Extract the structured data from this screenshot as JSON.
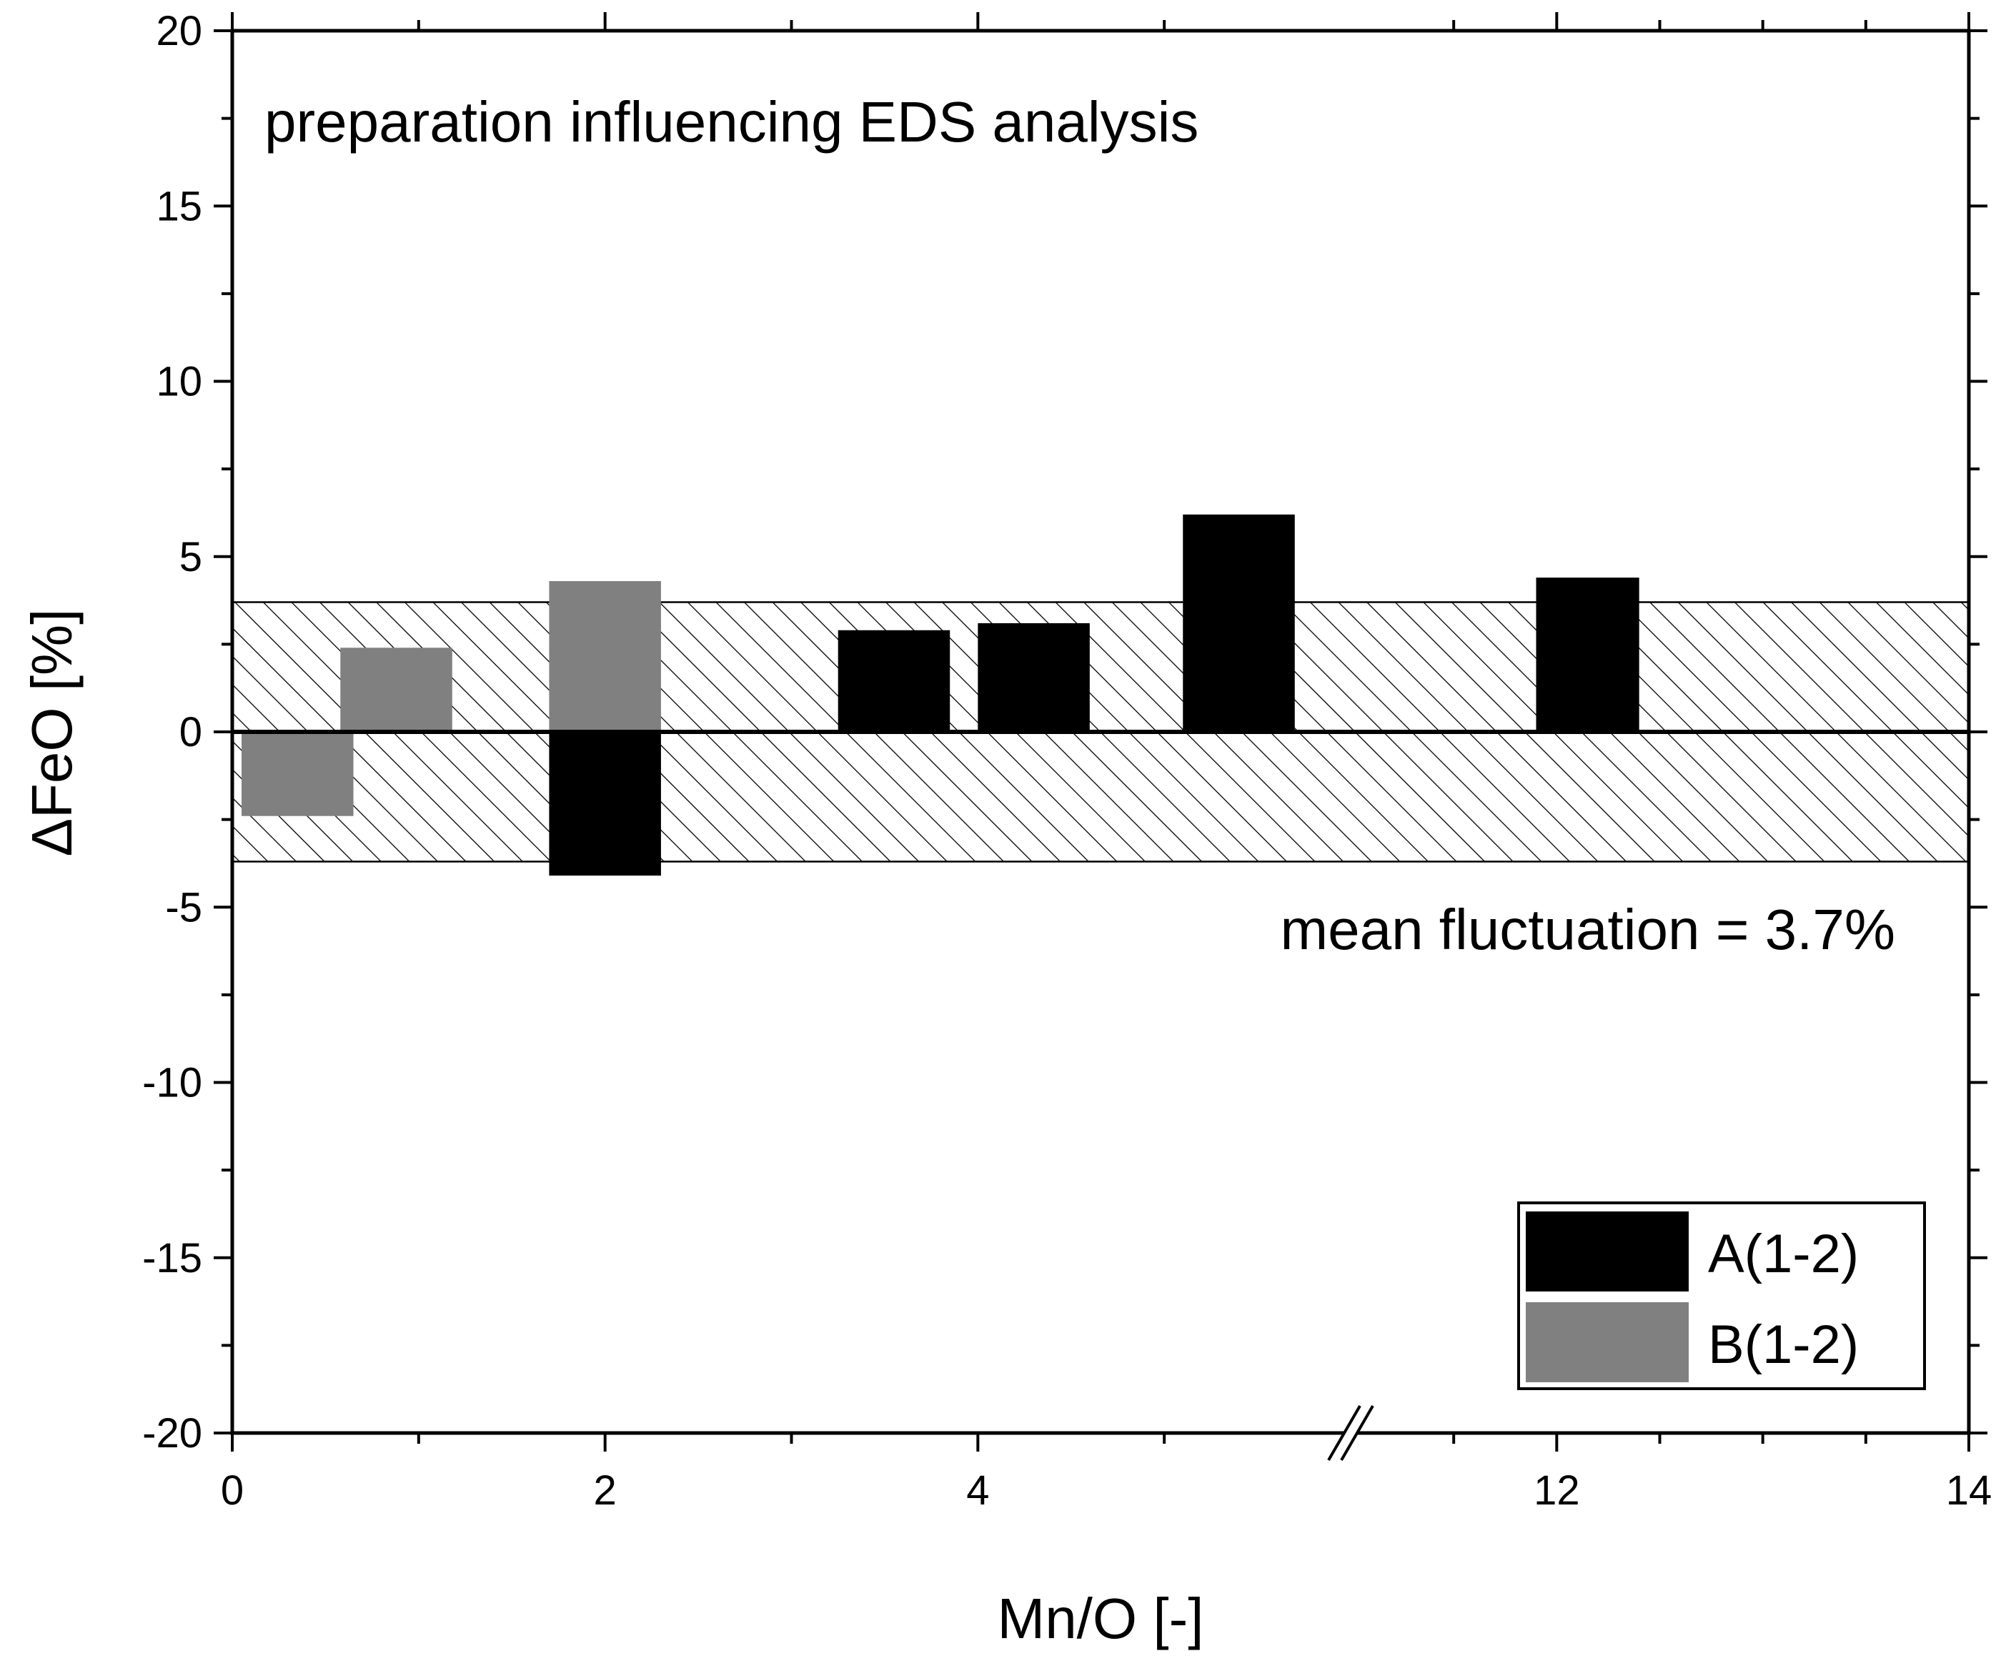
{
  "chart_data": {
    "type": "bar",
    "title": "preparation influencing EDS analysis",
    "xlabel": "Mn/O [-]",
    "ylabel": "ΔFeO [%]",
    "xlim": [
      0,
      14
    ],
    "ylim": [
      -20,
      20
    ],
    "x_break": {
      "between": [
        6,
        11
      ],
      "display_label": "//"
    },
    "x_ticks": [
      {
        "value": 0,
        "label": "0"
      },
      {
        "value": 2,
        "label": "2"
      },
      {
        "value": 4,
        "label": "4"
      },
      {
        "value": 12,
        "label": "12"
      },
      {
        "value": 14,
        "label": "14"
      }
    ],
    "y_ticks": [
      {
        "value": 20,
        "label": "20"
      },
      {
        "value": 15,
        "label": "15"
      },
      {
        "value": 10,
        "label": "10"
      },
      {
        "value": 5,
        "label": "5"
      },
      {
        "value": 0,
        "label": "0"
      },
      {
        "value": -5,
        "label": "-5"
      },
      {
        "value": -10,
        "label": "-10"
      },
      {
        "value": -15,
        "label": "-15"
      },
      {
        "value": -20,
        "label": "-20"
      }
    ],
    "band": {
      "from": -3.7,
      "to": 3.7,
      "pattern": "hatched"
    },
    "annotation": "mean fluctuation = 3.7%",
    "legend_position": "bottom-right",
    "series": [
      {
        "name": "A(1-2)",
        "color": "#000000",
        "bars": [
          {
            "x0": 1.7,
            "x1": 2.3,
            "value": -4.1
          },
          {
            "x0": 3.25,
            "x1": 3.85,
            "value": 2.9
          },
          {
            "x0": 4.0,
            "x1": 4.6,
            "value": 3.1
          },
          {
            "x0": 5.1,
            "x1": 5.7,
            "value": 6.2
          },
          {
            "x0": 11.9,
            "x1": 12.4,
            "value": 4.4
          }
        ]
      },
      {
        "name": "B(1-2)",
        "color": "#808080",
        "bars": [
          {
            "x0": 0.05,
            "x1": 0.65,
            "value": -2.4
          },
          {
            "x0": 0.58,
            "x1": 1.18,
            "value": 2.4
          },
          {
            "x0": 1.7,
            "x1": 2.3,
            "value": 4.3
          }
        ]
      }
    ]
  }
}
